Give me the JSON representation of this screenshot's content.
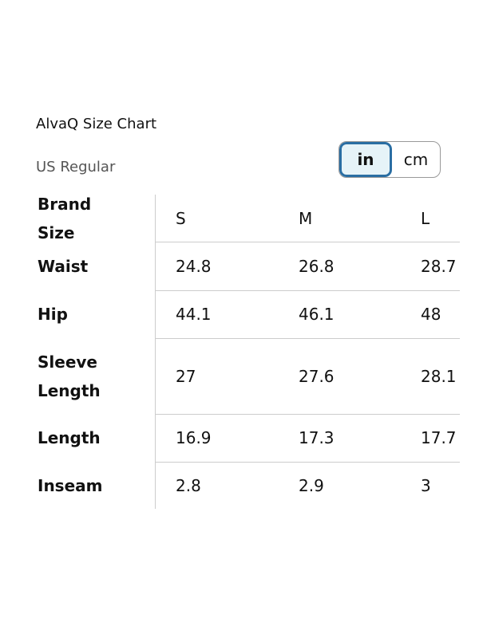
{
  "header": {
    "title": "AlvaQ Size Chart",
    "subtitle": "US Regular"
  },
  "unit_toggle": {
    "options": [
      "in",
      "cm"
    ],
    "selected_index": 0
  },
  "table": {
    "columns": [
      "Brand Size",
      "S",
      "M",
      "L"
    ],
    "rows": [
      [
        "Waist",
        "24.8",
        "26.8",
        "28.7"
      ],
      [
        "Hip",
        "44.1",
        "46.1",
        "48"
      ],
      [
        "Sleeve Length",
        "27",
        "27.6",
        "28.1"
      ],
      [
        "Length",
        "16.9",
        "17.3",
        "17.7"
      ],
      [
        "Inseam",
        "2.8",
        "2.9",
        "3"
      ]
    ]
  }
}
